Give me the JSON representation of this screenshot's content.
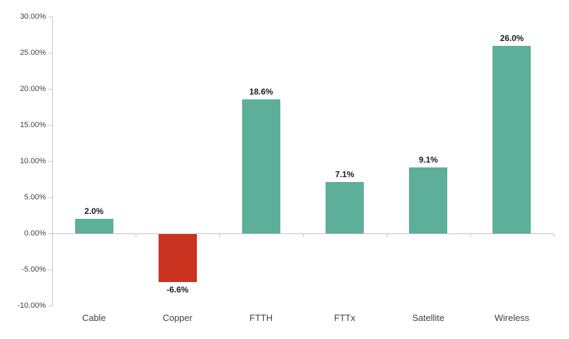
{
  "chart_data": {
    "type": "bar",
    "title": "",
    "xlabel": "",
    "ylabel": "",
    "categories": [
      "Cable",
      "Copper",
      "FTTH",
      "FTTx",
      "Satellite",
      "Wireless"
    ],
    "values": [
      2.0,
      -6.6,
      18.6,
      7.1,
      9.1,
      26.0
    ],
    "value_labels": [
      "2.0%",
      "-6.6%",
      "18.6%",
      "7.1%",
      "9.1%",
      "26.0%"
    ],
    "ylim": [
      -10,
      30
    ],
    "ytick_step": 5,
    "ytick_labels": [
      "30.00%",
      "25.00%",
      "20.00%",
      "15.00%",
      "10.00%",
      "5.00%",
      "0.00%",
      "-5.00%",
      "-10.00%"
    ],
    "grid": false,
    "legend": null,
    "colors": {
      "positive_bar": "#5EAF99",
      "negative_bar": "#C9331F",
      "axis": "#C3C3C3",
      "tick_text": "#3F3F3F",
      "value_text": "#1A1A1A",
      "background": "#FFFFFF"
    }
  }
}
